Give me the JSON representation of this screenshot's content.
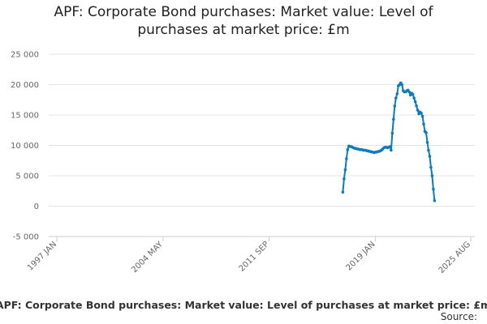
{
  "chart_data": {
    "type": "line",
    "title": "APF: Corporate Bond purchases: Market value: Level of purchases at market price: £m",
    "caption": "APF: Corporate Bond purchases: Market value: Level of purchases at market price: £m",
    "source": "Source:",
    "x": [
      "2016 OCT",
      "2016 NOV",
      "2016 DEC",
      "2017 JAN",
      "2017 FEB",
      "2017 MAR",
      "2017 APR",
      "2017 MAY",
      "2017 JUN",
      "2017 JUL",
      "2017 AUG",
      "2017 SEP",
      "2017 OCT",
      "2017 NOV",
      "2017 DEC",
      "2018 JAN",
      "2018 FEB",
      "2018 MAR",
      "2018 APR",
      "2018 MAY",
      "2018 JUN",
      "2018 JUL",
      "2018 AUG",
      "2018 SEP",
      "2018 OCT",
      "2018 NOV",
      "2018 DEC",
      "2019 JAN",
      "2019 FEB",
      "2019 MAR",
      "2019 APR",
      "2019 MAY",
      "2019 JUN",
      "2019 JUL",
      "2019 AUG",
      "2019 SEP",
      "2019 OCT",
      "2019 NOV",
      "2019 DEC",
      "2020 JAN",
      "2020 FEB",
      "2020 MAR",
      "2020 APR",
      "2020 MAY",
      "2020 JUN",
      "2020 JUL",
      "2020 AUG",
      "2020 SEP",
      "2020 OCT",
      "2020 NOV",
      "2020 DEC",
      "2021 JAN",
      "2021 FEB",
      "2021 MAR",
      "2021 APR",
      "2021 MAY",
      "2021 JUN",
      "2021 JUL",
      "2021 AUG",
      "2021 SEP",
      "2021 OCT",
      "2021 NOV",
      "2021 DEC",
      "2022 JAN",
      "2022 FEB",
      "2022 MAR",
      "2022 APR",
      "2022 MAY",
      "2022 JUN",
      "2022 JUL",
      "2022 AUG",
      "2022 SEP",
      "2022 OCT",
      "2022 NOV",
      "2022 DEC",
      "2023 JAN",
      "2023 FEB"
    ],
    "series": [
      {
        "color": "#0b7bbd",
        "values": [
          2300,
          4500,
          6000,
          7800,
          9300,
          9900,
          9800,
          9800,
          9700,
          9600,
          9500,
          9500,
          9400,
          9400,
          9300,
          9300,
          9300,
          9200,
          9200,
          9200,
          9100,
          9100,
          9000,
          9000,
          8900,
          8900,
          8800,
          8900,
          8900,
          9000,
          9000,
          9100,
          9200,
          9400,
          9600,
          9700,
          9700,
          9600,
          9700,
          9800,
          9200,
          12000,
          14300,
          16500,
          17800,
          18500,
          19800,
          20000,
          20300,
          20000,
          19000,
          18800,
          18800,
          19000,
          19100,
          18800,
          18300,
          18600,
          18400,
          17800,
          17200,
          16500,
          15800,
          15200,
          15500,
          15300,
          14800,
          13500,
          12300,
          12100,
          10500,
          9200,
          8200,
          6400,
          5000,
          2800,
          900
        ]
      }
    ],
    "xlim": [
      "1997 JAN",
      "2025 AUG"
    ],
    "xticks": [
      "1997 JAN",
      "2004 MAY",
      "2011 SEP",
      "2019 JAN",
      "2025 AUG"
    ],
    "ylim": [
      -5000,
      25000
    ],
    "yticks": [
      {
        "value": -5000,
        "label": "-5 000"
      },
      0,
      {
        "value": 5000,
        "label": "5 000"
      },
      {
        "value": 10000,
        "label": "10 000"
      },
      {
        "value": 15000,
        "label": "15 000"
      },
      {
        "value": 20000,
        "label": "20 000"
      },
      {
        "value": 25000,
        "label": "25 000"
      }
    ],
    "grid": true
  }
}
